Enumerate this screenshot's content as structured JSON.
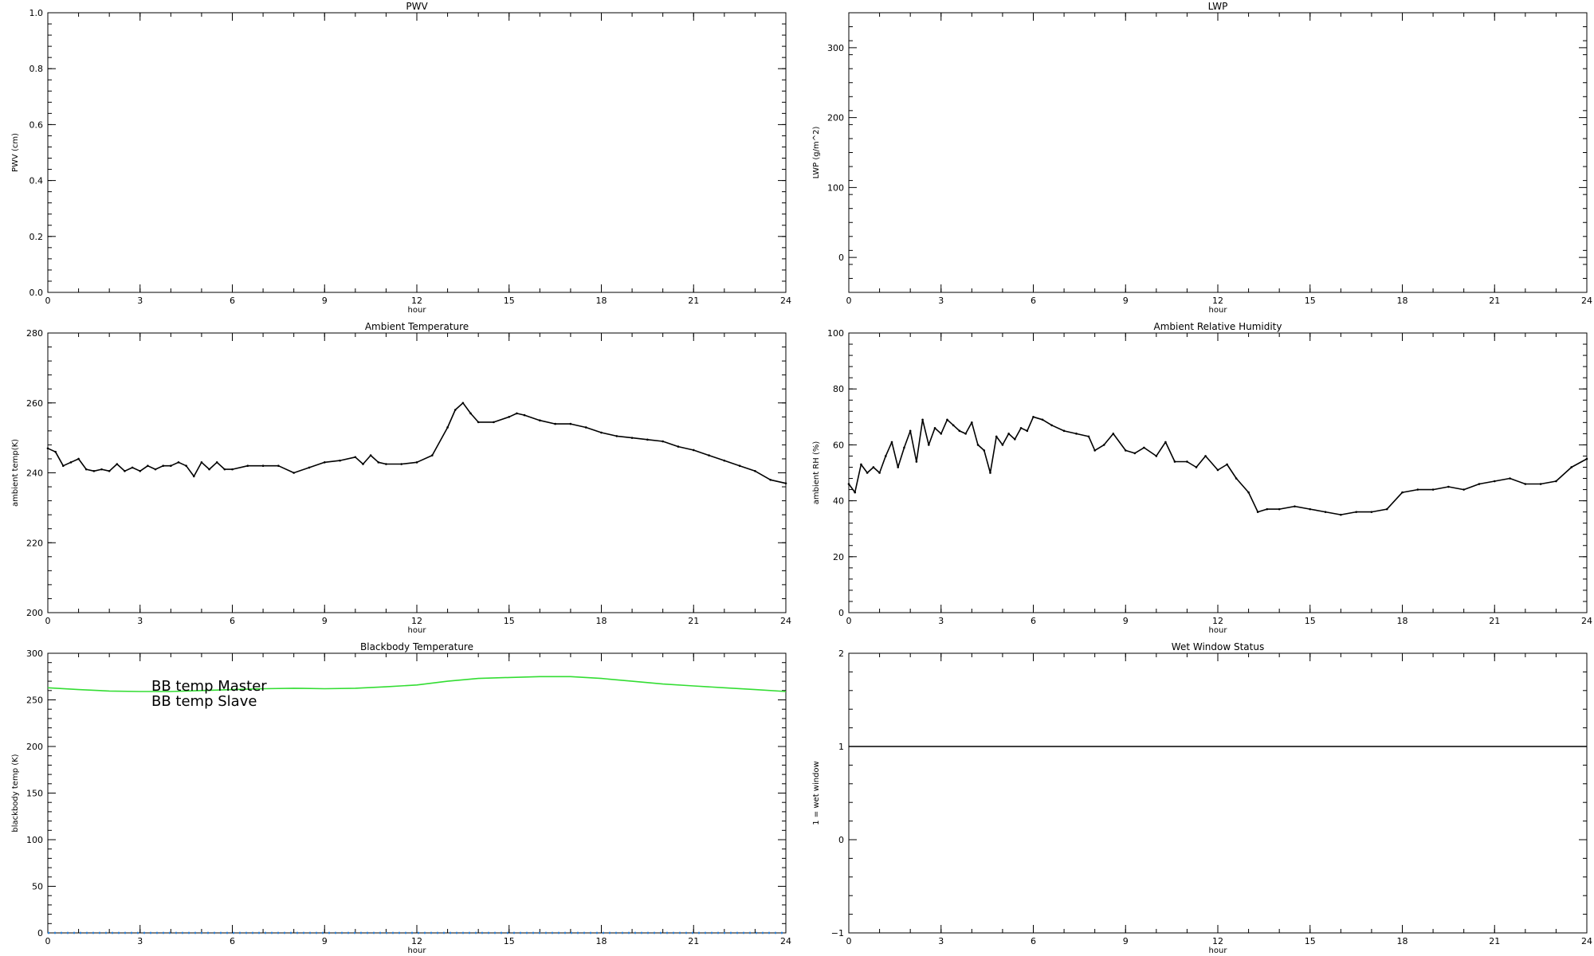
{
  "chart_data": [
    {
      "type": "scatter",
      "title": "PWV",
      "xlabel": "hour",
      "ylabel": "PWV (cm)",
      "xlim": [
        0,
        24
      ],
      "ylim": [
        0,
        1
      ],
      "xticks": [
        0,
        3,
        6,
        9,
        12,
        15,
        18,
        21,
        24
      ],
      "xtick_labels": [
        "0",
        "3",
        "6",
        "9",
        "12",
        "15",
        "18",
        "21",
        "24"
      ],
      "yticks": [
        0,
        0.2,
        0.4,
        0.6,
        0.8,
        1.0
      ],
      "ytick_labels": [
        "0.0",
        "0.2",
        "0.4",
        "0.6",
        "0.8",
        "1.0"
      ],
      "series": [],
      "grid": false
    },
    {
      "type": "scatter",
      "title": "LWP",
      "xlabel": "hour",
      "ylabel": "LWP (g/m^2)",
      "xlim": [
        0,
        24
      ],
      "ylim": [
        -50,
        350
      ],
      "xticks": [
        0,
        3,
        6,
        9,
        12,
        15,
        18,
        21,
        24
      ],
      "xtick_labels": [
        "0",
        "3",
        "6",
        "9",
        "12",
        "15",
        "18",
        "21",
        "24"
      ],
      "yticks": [
        0,
        100,
        200,
        300
      ],
      "ytick_labels": [
        "0",
        "100",
        "200",
        "300"
      ],
      "series": [],
      "grid": false
    },
    {
      "type": "scatter",
      "title": "Ambient Temperature",
      "xlabel": "hour",
      "ylabel": "ambient temp(K)",
      "xlim": [
        0,
        24
      ],
      "ylim": [
        200,
        280
      ],
      "xticks": [
        0,
        3,
        6,
        9,
        12,
        15,
        18,
        21,
        24
      ],
      "xtick_labels": [
        "0",
        "3",
        "6",
        "9",
        "12",
        "15",
        "18",
        "21",
        "24"
      ],
      "yticks": [
        200,
        220,
        240,
        260,
        280
      ],
      "ytick_labels": [
        "200",
        "220",
        "240",
        "260",
        "280"
      ],
      "grid": false,
      "series": [
        {
          "color": "#000000",
          "x": [
            0,
            0.25,
            0.5,
            0.75,
            1,
            1.25,
            1.5,
            1.75,
            2,
            2.25,
            2.5,
            2.75,
            3,
            3.25,
            3.5,
            3.75,
            4,
            4.25,
            4.5,
            4.75,
            5,
            5.25,
            5.5,
            5.75,
            6,
            6.5,
            7,
            7.5,
            8,
            8.5,
            9,
            9.5,
            10,
            10.25,
            10.5,
            10.75,
            11,
            11.5,
            12,
            12.5,
            13,
            13.25,
            13.5,
            13.75,
            14,
            14.5,
            15,
            15.25,
            15.5,
            16,
            16.5,
            17,
            17.5,
            18,
            18.5,
            19,
            19.5,
            20,
            20.5,
            21,
            21.5,
            22,
            22.5,
            23,
            23.5,
            24
          ],
          "y": [
            247,
            246,
            242,
            243,
            244,
            241,
            240.5,
            241,
            240.5,
            242.5,
            240.5,
            241.5,
            240.5,
            242,
            241,
            242,
            242,
            243,
            242,
            239,
            243,
            241,
            243,
            241,
            241,
            242,
            242,
            242,
            240,
            241.5,
            243,
            243.5,
            244.5,
            242.5,
            245,
            243,
            242.5,
            242.5,
            243,
            245,
            253,
            258,
            260,
            257,
            254.5,
            254.5,
            256,
            257,
            256.5,
            255,
            254,
            254,
            253,
            251.5,
            250.5,
            250,
            249.5,
            249,
            247.5,
            246.5,
            245,
            243.5,
            242,
            240.5,
            238,
            237
          ]
        }
      ]
    },
    {
      "type": "scatter",
      "title": "Ambient Relative Humidity",
      "xlabel": "hour",
      "ylabel": "ambient RH (%)",
      "xlim": [
        0,
        24
      ],
      "ylim": [
        0,
        100
      ],
      "xticks": [
        0,
        3,
        6,
        9,
        12,
        15,
        18,
        21,
        24
      ],
      "xtick_labels": [
        "0",
        "3",
        "6",
        "9",
        "12",
        "15",
        "18",
        "21",
        "24"
      ],
      "yticks": [
        0,
        20,
        40,
        60,
        80,
        100
      ],
      "ytick_labels": [
        "0",
        "20",
        "40",
        "60",
        "80",
        "100"
      ],
      "grid": false,
      "series": [
        {
          "color": "#000000",
          "x": [
            0,
            0.2,
            0.4,
            0.6,
            0.8,
            1,
            1.2,
            1.4,
            1.6,
            1.8,
            2,
            2.2,
            2.4,
            2.6,
            2.8,
            3,
            3.2,
            3.4,
            3.6,
            3.8,
            4,
            4.2,
            4.4,
            4.6,
            4.8,
            5,
            5.2,
            5.4,
            5.6,
            5.8,
            6,
            6.3,
            6.6,
            7,
            7.4,
            7.8,
            8,
            8.3,
            8.6,
            9,
            9.3,
            9.6,
            10,
            10.3,
            10.6,
            11,
            11.3,
            11.6,
            12,
            12.3,
            12.6,
            13,
            13.3,
            13.6,
            14,
            14.5,
            15,
            15.5,
            16,
            16.5,
            17,
            17.5,
            18,
            18.5,
            19,
            19.5,
            20,
            20.5,
            21,
            21.5,
            22,
            22.5,
            23,
            23.5,
            24
          ],
          "y": [
            46,
            43,
            53,
            50,
            52,
            50,
            56,
            61,
            52,
            59,
            65,
            54,
            69,
            60,
            66,
            64,
            69,
            67,
            65,
            64,
            68,
            60,
            58,
            50,
            63,
            60,
            64,
            62,
            66,
            65,
            70,
            69,
            67,
            65,
            64,
            63,
            58,
            60,
            64,
            58,
            57,
            59,
            56,
            61,
            54,
            54,
            52,
            56,
            51,
            53,
            48,
            43,
            36,
            37,
            37,
            38,
            37,
            36,
            35,
            36,
            36,
            37,
            43,
            44,
            44,
            45,
            44,
            46,
            47,
            48,
            46,
            46,
            47,
            52,
            55
          ]
        }
      ]
    },
    {
      "type": "line",
      "title": "Blackbody Temperature",
      "xlabel": "hour",
      "ylabel": "blackbody temp (K)",
      "xlim": [
        0,
        24
      ],
      "ylim": [
        0,
        300
      ],
      "xticks": [
        0,
        3,
        6,
        9,
        12,
        15,
        18,
        21,
        24
      ],
      "xtick_labels": [
        "0",
        "3",
        "6",
        "9",
        "12",
        "15",
        "18",
        "21",
        "24"
      ],
      "yticks": [
        0,
        50,
        100,
        150,
        200,
        250,
        300
      ],
      "ytick_labels": [
        "0",
        "50",
        "100",
        "150",
        "200",
        "250",
        "300"
      ],
      "grid": false,
      "legend_position": "top-left",
      "series": [
        {
          "name": "BB temp Master",
          "color": "#2b7fd6",
          "dotted": true,
          "x": [
            0,
            24
          ],
          "y": [
            0,
            0
          ]
        },
        {
          "name": "BB temp Slave",
          "color": "#33dd33",
          "dotted": false,
          "x": [
            0,
            1,
            2,
            3,
            4,
            5,
            6,
            7,
            8,
            9,
            10,
            11,
            12,
            13,
            14,
            15,
            16,
            17,
            18,
            19,
            20,
            21,
            22,
            23,
            24
          ],
          "y": [
            263,
            261,
            259.5,
            259,
            259,
            260,
            261,
            262,
            262.5,
            262,
            262.5,
            264,
            266,
            270,
            273,
            274,
            275,
            275,
            273,
            270,
            267,
            265,
            263,
            261,
            259
          ]
        }
      ]
    },
    {
      "type": "line",
      "title": "Wet Window Status",
      "xlabel": "hour",
      "ylabel": "1 = wet window",
      "xlim": [
        0,
        24
      ],
      "ylim": [
        -1,
        2
      ],
      "xticks": [
        0,
        3,
        6,
        9,
        12,
        15,
        18,
        21,
        24
      ],
      "xtick_labels": [
        "0",
        "3",
        "6",
        "9",
        "12",
        "15",
        "18",
        "21",
        "24"
      ],
      "yticks": [
        -1,
        0,
        1,
        2
      ],
      "ytick_labels": [
        "−1",
        "0",
        "1",
        "2"
      ],
      "grid": false,
      "series": [
        {
          "color": "#000000",
          "dotted": false,
          "x": [
            0,
            24
          ],
          "y": [
            1,
            1
          ]
        }
      ]
    }
  ]
}
